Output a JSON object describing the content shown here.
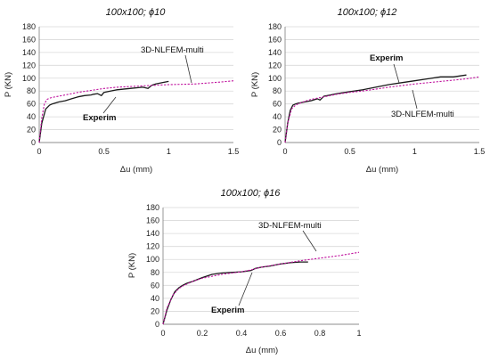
{
  "chart_data": [
    {
      "type": "line",
      "title": "100x100; ϕ10",
      "xlabel": "Δu (mm)",
      "ylabel": "P (KN)",
      "xlim": [
        0,
        1.5
      ],
      "ylim": [
        0,
        180
      ],
      "xticks": [
        "0",
        "0.5",
        "1",
        "1.5"
      ],
      "yticks": [
        "0",
        "20",
        "40",
        "60",
        "80",
        "100",
        "120",
        "140",
        "160",
        "180"
      ],
      "grid": true,
      "series": [
        {
          "name": "Experim",
          "color": "#1a1a1a",
          "dash": false,
          "x": [
            0,
            0.02,
            0.05,
            0.08,
            0.1,
            0.15,
            0.2,
            0.25,
            0.3,
            0.35,
            0.4,
            0.42,
            0.45,
            0.48,
            0.5,
            0.55,
            0.6,
            0.7,
            0.8,
            0.84,
            0.87,
            0.9,
            0.95,
            1.0
          ],
          "y": [
            0,
            30,
            52,
            58,
            60,
            63,
            65,
            68,
            71,
            73,
            74,
            75,
            76,
            73,
            78,
            80,
            82,
            84,
            86,
            84,
            89,
            91,
            93,
            95
          ]
        },
        {
          "name": "3D-NLFEM-multi",
          "color": "#c0139e",
          "dash": true,
          "x": [
            0,
            0.02,
            0.04,
            0.06,
            0.08,
            0.1,
            0.15,
            0.2,
            0.3,
            0.4,
            0.5,
            0.6,
            0.8,
            1.0,
            1.2,
            1.4,
            1.5
          ],
          "y": [
            0,
            38,
            60,
            67,
            69,
            70,
            72,
            74,
            78,
            81,
            84,
            86,
            88,
            90,
            91,
            94,
            96
          ]
        }
      ],
      "annotations": [
        {
          "text": "3D-NLFEM-multi",
          "bold": false
        },
        {
          "text": "Experim",
          "bold": true
        }
      ]
    },
    {
      "type": "line",
      "title": "100x100; ϕ12",
      "xlabel": "Δu (mm)",
      "ylabel": "P (KN)",
      "xlim": [
        0,
        1.5
      ],
      "ylim": [
        0,
        180
      ],
      "xticks": [
        "0",
        "0.5",
        "1",
        "1.5"
      ],
      "yticks": [
        "0",
        "20",
        "40",
        "60",
        "80",
        "100",
        "120",
        "140",
        "160",
        "180"
      ],
      "grid": true,
      "series": [
        {
          "name": "Experim",
          "color": "#1a1a1a",
          "dash": false,
          "x": [
            0,
            0.02,
            0.04,
            0.06,
            0.08,
            0.1,
            0.15,
            0.2,
            0.25,
            0.27,
            0.3,
            0.35,
            0.4,
            0.5,
            0.6,
            0.7,
            0.8,
            0.9,
            1.0,
            1.1,
            1.2,
            1.3,
            1.4
          ],
          "y": [
            0,
            30,
            50,
            58,
            60,
            61,
            63,
            65,
            68,
            66,
            72,
            74,
            76,
            79,
            82,
            86,
            90,
            93,
            96,
            99,
            102,
            102,
            105
          ]
        },
        {
          "name": "3D-NLFEM-multi",
          "color": "#c0139e",
          "dash": true,
          "x": [
            0,
            0.02,
            0.05,
            0.08,
            0.1,
            0.15,
            0.2,
            0.3,
            0.4,
            0.5,
            0.6,
            0.8,
            1.0,
            1.2,
            1.4,
            1.5
          ],
          "y": [
            0,
            30,
            52,
            58,
            60,
            64,
            67,
            71,
            75,
            78,
            80,
            86,
            91,
            95,
            99,
            102
          ]
        }
      ],
      "annotations": [
        {
          "text": "Experim",
          "bold": true
        },
        {
          "text": "3D-NLFEM-multi",
          "bold": false
        }
      ]
    },
    {
      "type": "line",
      "title": "100x100; ϕ16",
      "xlabel": "Δu (mm)",
      "ylabel": "P (KN)",
      "xlim": [
        0,
        1
      ],
      "ylim": [
        0,
        180
      ],
      "xticks": [
        "0",
        "0.2",
        "0.4",
        "0.6",
        "0.8",
        "1"
      ],
      "yticks": [
        "0",
        "20",
        "40",
        "60",
        "80",
        "100",
        "120",
        "140",
        "160",
        "180"
      ],
      "grid": true,
      "series": [
        {
          "name": "Experim",
          "color": "#1a1a1a",
          "dash": false,
          "x": [
            0,
            0.02,
            0.04,
            0.06,
            0.08,
            0.1,
            0.12,
            0.15,
            0.2,
            0.25,
            0.3,
            0.35,
            0.4,
            0.45,
            0.47,
            0.5,
            0.55,
            0.6,
            0.65,
            0.7,
            0.74
          ],
          "y": [
            0,
            22,
            38,
            50,
            56,
            60,
            63,
            66,
            72,
            77,
            79,
            80,
            81,
            83,
            86,
            88,
            90,
            93,
            95,
            96,
            96
          ]
        },
        {
          "name": "3D-NLFEM-multi",
          "color": "#c0139e",
          "dash": true,
          "x": [
            0,
            0.02,
            0.05,
            0.08,
            0.1,
            0.15,
            0.2,
            0.3,
            0.4,
            0.45,
            0.5,
            0.6,
            0.7,
            0.8,
            0.9,
            1.0
          ],
          "y": [
            0,
            25,
            45,
            55,
            59,
            66,
            71,
            77,
            81,
            84,
            88,
            93,
            98,
            102,
            106,
            111
          ]
        }
      ],
      "annotations": [
        {
          "text": "3D-NLFEM-multi",
          "bold": false
        },
        {
          "text": "Experim",
          "bold": true
        }
      ]
    }
  ]
}
